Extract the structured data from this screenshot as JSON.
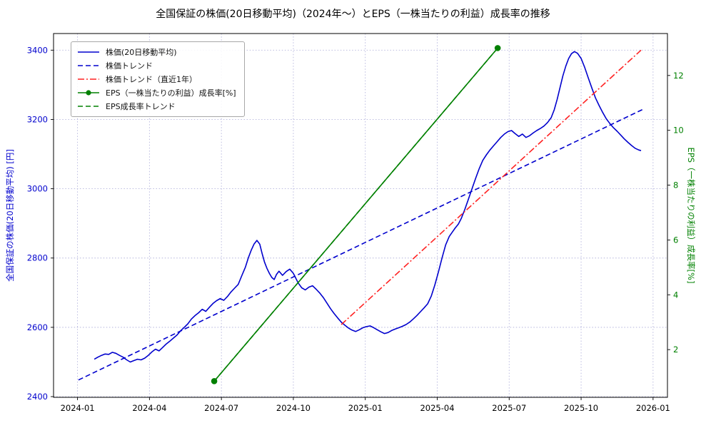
{
  "chart_data": {
    "type": "line",
    "title": "全国保証の株価(20日移動平均)（2024年〜）とEPS（一株当たりの利益）成長率の推移",
    "x_axis": {
      "unit": "months since 2024-01",
      "domain": [
        -1.0,
        24.6
      ],
      "tick_values": [
        0,
        3,
        6,
        9,
        12,
        15,
        18,
        21,
        24
      ],
      "tick_labels": [
        "2024-01",
        "2024-04",
        "2024-07",
        "2024-10",
        "2025-01",
        "2025-04",
        "2025-07",
        "2025-10",
        "2026-01"
      ]
    },
    "y_left": {
      "label": "全国保証の株価(20日移動平均) [円]",
      "color": "#0000cd",
      "domain": [
        2398,
        3448
      ],
      "ticks": [
        2400,
        2600,
        2800,
        3000,
        3200,
        3400
      ]
    },
    "y_right": {
      "label": "EPS（一株当たりの利益）成長率[%]",
      "color": "#008000",
      "domain": [
        0.26,
        13.53
      ],
      "ticks": [
        2,
        4,
        6,
        8,
        10,
        12
      ]
    },
    "grid": true,
    "legend_position": "upper left",
    "series": [
      {
        "id": "price",
        "name": "株価(20日移動平均)",
        "axis": "left",
        "style": "solid",
        "marker": false,
        "color": "#0000cd",
        "points": [
          [
            0.7,
            2508
          ],
          [
            0.85,
            2514
          ],
          [
            1.0,
            2519
          ],
          [
            1.15,
            2523
          ],
          [
            1.3,
            2522
          ],
          [
            1.45,
            2528
          ],
          [
            1.6,
            2525
          ],
          [
            1.75,
            2519
          ],
          [
            1.9,
            2514
          ],
          [
            2.05,
            2506
          ],
          [
            2.2,
            2500
          ],
          [
            2.35,
            2504
          ],
          [
            2.5,
            2508
          ],
          [
            2.65,
            2506
          ],
          [
            2.8,
            2511
          ],
          [
            2.95,
            2519
          ],
          [
            3.1,
            2529
          ],
          [
            3.25,
            2537
          ],
          [
            3.4,
            2532
          ],
          [
            3.55,
            2542
          ],
          [
            3.7,
            2552
          ],
          [
            3.85,
            2560
          ],
          [
            4.0,
            2569
          ],
          [
            4.15,
            2578
          ],
          [
            4.3,
            2590
          ],
          [
            4.45,
            2600
          ],
          [
            4.6,
            2610
          ],
          [
            4.75,
            2624
          ],
          [
            4.9,
            2634
          ],
          [
            5.05,
            2642
          ],
          [
            5.2,
            2652
          ],
          [
            5.35,
            2646
          ],
          [
            5.5,
            2658
          ],
          [
            5.65,
            2669
          ],
          [
            5.8,
            2677
          ],
          [
            5.95,
            2683
          ],
          [
            6.1,
            2678
          ],
          [
            6.25,
            2689
          ],
          [
            6.4,
            2702
          ],
          [
            6.55,
            2713
          ],
          [
            6.7,
            2724
          ],
          [
            6.85,
            2749
          ],
          [
            7.0,
            2774
          ],
          [
            7.12,
            2800
          ],
          [
            7.24,
            2822
          ],
          [
            7.36,
            2840
          ],
          [
            7.48,
            2851
          ],
          [
            7.6,
            2840
          ],
          [
            7.7,
            2812
          ],
          [
            7.8,
            2788
          ],
          [
            7.9,
            2770
          ],
          [
            8.0,
            2756
          ],
          [
            8.1,
            2744
          ],
          [
            8.2,
            2738
          ],
          [
            8.3,
            2753
          ],
          [
            8.4,
            2762
          ],
          [
            8.55,
            2750
          ],
          [
            8.7,
            2761
          ],
          [
            8.85,
            2768
          ],
          [
            9.0,
            2756
          ],
          [
            9.1,
            2742
          ],
          [
            9.2,
            2728
          ],
          [
            9.35,
            2714
          ],
          [
            9.5,
            2708
          ],
          [
            9.65,
            2716
          ],
          [
            9.8,
            2720
          ],
          [
            9.95,
            2710
          ],
          [
            10.1,
            2699
          ],
          [
            10.25,
            2686
          ],
          [
            10.4,
            2670
          ],
          [
            10.55,
            2654
          ],
          [
            10.7,
            2640
          ],
          [
            10.85,
            2627
          ],
          [
            11.0,
            2615
          ],
          [
            11.15,
            2606
          ],
          [
            11.3,
            2598
          ],
          [
            11.45,
            2592
          ],
          [
            11.6,
            2588
          ],
          [
            11.75,
            2593
          ],
          [
            11.9,
            2599
          ],
          [
            12.05,
            2602
          ],
          [
            12.2,
            2604
          ],
          [
            12.35,
            2599
          ],
          [
            12.5,
            2593
          ],
          [
            12.65,
            2587
          ],
          [
            12.8,
            2582
          ],
          [
            12.95,
            2585
          ],
          [
            13.1,
            2591
          ],
          [
            13.25,
            2595
          ],
          [
            13.4,
            2599
          ],
          [
            13.55,
            2603
          ],
          [
            13.7,
            2608
          ],
          [
            13.85,
            2615
          ],
          [
            14.0,
            2624
          ],
          [
            14.15,
            2634
          ],
          [
            14.3,
            2645
          ],
          [
            14.45,
            2656
          ],
          [
            14.6,
            2668
          ],
          [
            14.75,
            2690
          ],
          [
            14.9,
            2722
          ],
          [
            15.05,
            2760
          ],
          [
            15.2,
            2800
          ],
          [
            15.35,
            2838
          ],
          [
            15.5,
            2862
          ],
          [
            15.62,
            2874
          ],
          [
            15.74,
            2886
          ],
          [
            15.88,
            2898
          ],
          [
            16.0,
            2914
          ],
          [
            16.15,
            2940
          ],
          [
            16.3,
            2970
          ],
          [
            16.45,
            3000
          ],
          [
            16.6,
            3030
          ],
          [
            16.75,
            3058
          ],
          [
            16.9,
            3082
          ],
          [
            17.05,
            3098
          ],
          [
            17.2,
            3112
          ],
          [
            17.35,
            3124
          ],
          [
            17.5,
            3136
          ],
          [
            17.65,
            3148
          ],
          [
            17.8,
            3158
          ],
          [
            17.95,
            3165
          ],
          [
            18.1,
            3168
          ],
          [
            18.25,
            3159
          ],
          [
            18.4,
            3151
          ],
          [
            18.55,
            3158
          ],
          [
            18.7,
            3148
          ],
          [
            18.85,
            3153
          ],
          [
            19.0,
            3161
          ],
          [
            19.15,
            3168
          ],
          [
            19.3,
            3174
          ],
          [
            19.45,
            3181
          ],
          [
            19.6,
            3191
          ],
          [
            19.75,
            3205
          ],
          [
            19.88,
            3228
          ],
          [
            20.0,
            3258
          ],
          [
            20.12,
            3292
          ],
          [
            20.24,
            3326
          ],
          [
            20.36,
            3354
          ],
          [
            20.48,
            3376
          ],
          [
            20.6,
            3390
          ],
          [
            20.72,
            3396
          ],
          [
            20.85,
            3391
          ],
          [
            21.0,
            3376
          ],
          [
            21.15,
            3350
          ],
          [
            21.3,
            3320
          ],
          [
            21.45,
            3290
          ],
          [
            21.6,
            3262
          ],
          [
            21.75,
            3240
          ],
          [
            21.9,
            3220
          ],
          [
            22.05,
            3202
          ],
          [
            22.2,
            3188
          ],
          [
            22.35,
            3176
          ],
          [
            22.5,
            3166
          ],
          [
            22.65,
            3155
          ],
          [
            22.8,
            3144
          ],
          [
            22.95,
            3134
          ],
          [
            23.1,
            3125
          ],
          [
            23.25,
            3117
          ],
          [
            23.4,
            3112
          ],
          [
            23.5,
            3110
          ]
        ]
      },
      {
        "id": "price-trend",
        "name": "株価トレンド",
        "axis": "left",
        "style": "dashed",
        "marker": false,
        "color": "#0000cd",
        "points": [
          [
            0.04,
            2448
          ],
          [
            23.6,
            3230
          ]
        ]
      },
      {
        "id": "price-trend-1y",
        "name": "株価トレンド（直近1年）",
        "axis": "left",
        "style": "dashdot",
        "marker": false,
        "color": "#ff2222",
        "points": [
          [
            11.0,
            2608
          ],
          [
            23.5,
            3400
          ]
        ]
      },
      {
        "id": "eps-growth",
        "name": "EPS（一株当たりの利益）成長率[%]",
        "axis": "right",
        "style": "solid",
        "marker": true,
        "color": "#008000",
        "points": [
          [
            5.7,
            0.85
          ],
          [
            17.52,
            13.0
          ]
        ]
      },
      {
        "id": "eps-trend",
        "name": "EPS成長率トレンド",
        "axis": "right",
        "style": "dashed",
        "marker": false,
        "color": "#008000",
        "points": [
          [
            5.7,
            0.85
          ],
          [
            17.52,
            13.0
          ]
        ]
      }
    ]
  }
}
